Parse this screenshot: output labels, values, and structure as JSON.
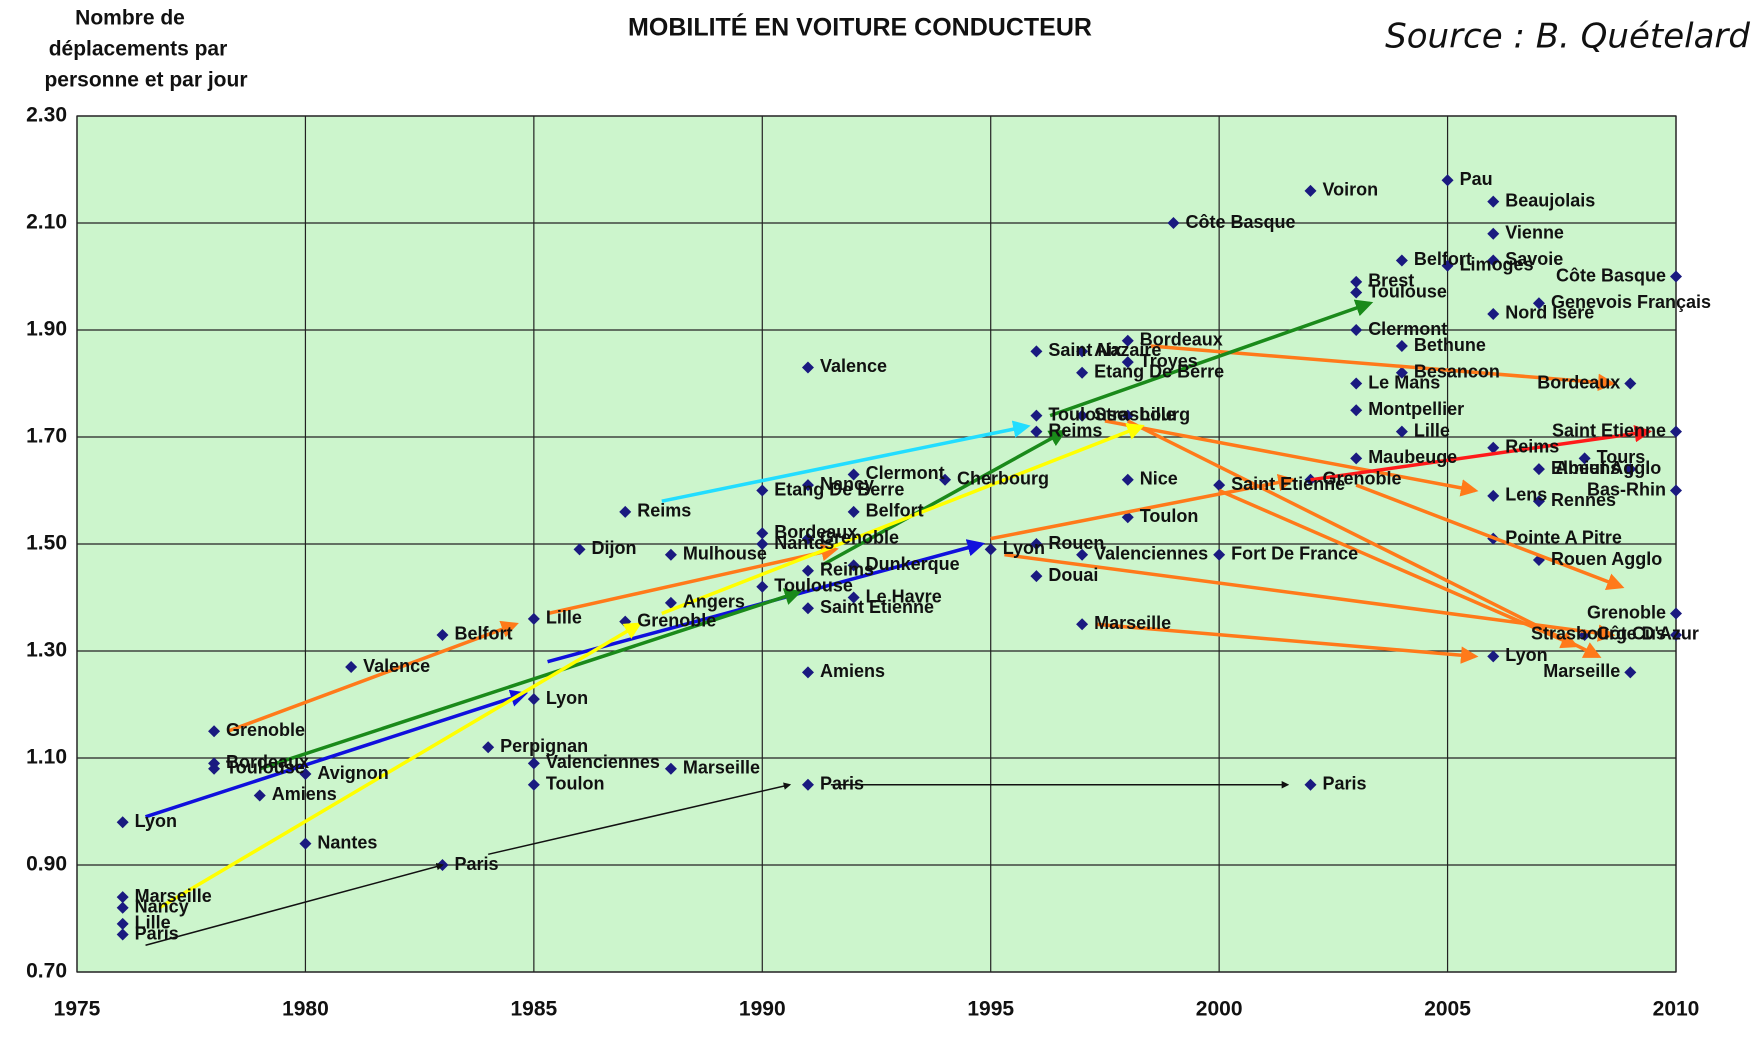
{
  "chart_data": {
    "type": "scatter",
    "title": "MOBILITÉ EN VOITURE CONDUCTEUR",
    "source": "Source : B. Quételard",
    "ylabel": [
      "Nombre de",
      "déplacements par",
      "personne et par jour"
    ],
    "xlim": [
      1975,
      2010
    ],
    "ylim": [
      0.7,
      2.3
    ],
    "xticks": [
      1975,
      1980,
      1985,
      1990,
      1995,
      2000,
      2005,
      2010
    ],
    "yticks": [
      {
        "value": 0.7,
        "label": "0.70"
      },
      {
        "value": 0.9,
        "label": "0.90"
      },
      {
        "value": 1.1,
        "label": "1.10"
      },
      {
        "value": 1.3,
        "label": "1.30"
      },
      {
        "value": 1.5,
        "label": "1.50"
      },
      {
        "value": 1.7,
        "label": "1.70"
      },
      {
        "value": 1.9,
        "label": "1.90"
      },
      {
        "value": 2.1,
        "label": "2.10"
      },
      {
        "value": 2.3,
        "label": "2.30"
      }
    ],
    "grid": true,
    "color": "#1a1a80",
    "background": "#ccf5cc",
    "points": [
      {
        "x": 1976,
        "y": 0.84,
        "label": "Marseille"
      },
      {
        "x": 1976,
        "y": 0.82,
        "label": "Nancy"
      },
      {
        "x": 1976,
        "y": 0.79,
        "label": "Lille"
      },
      {
        "x": 1976,
        "y": 0.77,
        "label": "Paris"
      },
      {
        "x": 1976,
        "y": 0.98,
        "label": "Lyon"
      },
      {
        "x": 1978,
        "y": 1.15,
        "label": "Grenoble"
      },
      {
        "x": 1978,
        "y": 1.09,
        "label": "Bordeaux"
      },
      {
        "x": 1978,
        "y": 1.08,
        "label": "Toulouse"
      },
      {
        "x": 1979,
        "y": 1.03,
        "label": "Amiens"
      },
      {
        "x": 1980,
        "y": 1.07,
        "label": "Avignon"
      },
      {
        "x": 1980,
        "y": 0.94,
        "label": "Nantes"
      },
      {
        "x": 1981,
        "y": 1.27,
        "label": "Valence"
      },
      {
        "x": 1983,
        "y": 1.33,
        "label": "Belfort"
      },
      {
        "x": 1983,
        "y": 0.9,
        "label": "Paris"
      },
      {
        "x": 1984,
        "y": 1.12,
        "label": "Perpignan"
      },
      {
        "x": 1985,
        "y": 1.36,
        "label": "Lille"
      },
      {
        "x": 1987,
        "y": 1.355,
        "label": "Grenoble"
      },
      {
        "x": 1985,
        "y": 1.21,
        "label": "Lyon"
      },
      {
        "x": 1985,
        "y": 1.09,
        "label": "Valenciennes"
      },
      {
        "x": 1985,
        "y": 1.05,
        "label": "Toulon"
      },
      {
        "x": 1988,
        "y": 1.08,
        "label": "Marseille"
      },
      {
        "x": 1988,
        "y": 1.48,
        "label": "Mulhouse"
      },
      {
        "x": 1986,
        "y": 1.49,
        "label": "Dijon"
      },
      {
        "x": 1987,
        "y": 1.56,
        "label": "Reims"
      },
      {
        "x": 1990,
        "y": 1.6,
        "label": "Etang De Berre"
      },
      {
        "x": 1988,
        "y": 1.39,
        "label": "Angers"
      },
      {
        "x": 1992,
        "y": 1.63,
        "label": "Clermont"
      },
      {
        "x": 1991,
        "y": 1.61,
        "label": "Nancy"
      },
      {
        "x": 1991,
        "y": 1.83,
        "label": "Valence"
      },
      {
        "x": 1992,
        "y": 1.56,
        "label": "Belfort"
      },
      {
        "x": 1990,
        "y": 1.52,
        "label": "Bordeaux"
      },
      {
        "x": 1990,
        "y": 1.5,
        "label": "Nantes"
      },
      {
        "x": 1991,
        "y": 1.51,
        "label": "Grenoble"
      },
      {
        "x": 1991,
        "y": 1.45,
        "label": "Reims"
      },
      {
        "x": 1992,
        "y": 1.46,
        "label": "Dunkerque"
      },
      {
        "x": 1990,
        "y": 1.42,
        "label": "Toulouse"
      },
      {
        "x": 1992,
        "y": 1.4,
        "label": "Le Havre"
      },
      {
        "x": 1991,
        "y": 1.38,
        "label": "Saint Etienne"
      },
      {
        "x": 1991,
        "y": 1.26,
        "label": "Amiens"
      },
      {
        "x": 1991,
        "y": 1.05,
        "label": "Paris"
      },
      {
        "x": 1994,
        "y": 1.62,
        "label": "Cherbourg"
      },
      {
        "x": 1995,
        "y": 1.49,
        "label": "Lyon"
      },
      {
        "x": 1996,
        "y": 1.86,
        "label": "Saint Nazaire"
      },
      {
        "x": 1996,
        "y": 1.74,
        "label": "Toulouse"
      },
      {
        "x": 1996,
        "y": 1.71,
        "label": "Reims"
      },
      {
        "x": 1996,
        "y": 1.5,
        "label": "Rouen"
      },
      {
        "x": 1996,
        "y": 1.44,
        "label": "Douai"
      },
      {
        "x": 1997,
        "y": 1.86,
        "label": "Aix"
      },
      {
        "x": 1997,
        "y": 1.82,
        "label": "Etang De Berre"
      },
      {
        "x": 1997,
        "y": 1.74,
        "label": "Strasbourg"
      },
      {
        "x": 1997,
        "y": 1.48,
        "label": "Valenciennes"
      },
      {
        "x": 1997,
        "y": 1.35,
        "label": "Marseille"
      },
      {
        "x": 1998,
        "y": 1.88,
        "label": "Bordeaux"
      },
      {
        "x": 1998,
        "y": 1.84,
        "label": "Troyes"
      },
      {
        "x": 1998,
        "y": 1.74,
        "label": "Lille"
      },
      {
        "x": 1998,
        "y": 1.62,
        "label": "Nice"
      },
      {
        "x": 1998,
        "y": 1.55,
        "label": "Toulon"
      },
      {
        "x": 1999,
        "y": 2.1,
        "label": "Côte Basque"
      },
      {
        "x": 2000,
        "y": 1.48,
        "label": "Fort De France"
      },
      {
        "x": 2000,
        "y": 1.61,
        "label": "Saint Etienne"
      },
      {
        "x": 2002,
        "y": 2.16,
        "label": "Voiron"
      },
      {
        "x": 2002,
        "y": 1.62,
        "label": "Grenoble"
      },
      {
        "x": 2002,
        "y": 1.05,
        "label": "Paris"
      },
      {
        "x": 2003,
        "y": 1.99,
        "label": "Brest"
      },
      {
        "x": 2003,
        "y": 1.97,
        "label": "Toulouse"
      },
      {
        "x": 2003,
        "y": 1.9,
        "label": "Clermont"
      },
      {
        "x": 2003,
        "y": 1.8,
        "label": "Le Mans"
      },
      {
        "x": 2003,
        "y": 1.75,
        "label": "Montpellier"
      },
      {
        "x": 2003,
        "y": 1.66,
        "label": "Maubeuge"
      },
      {
        "x": 2004,
        "y": 2.03,
        "label": "Belfort"
      },
      {
        "x": 2004,
        "y": 1.87,
        "label": "Bethune"
      },
      {
        "x": 2004,
        "y": 1.82,
        "label": "Besancon"
      },
      {
        "x": 2004,
        "y": 1.71,
        "label": "Lille"
      },
      {
        "x": 2005,
        "y": 2.18,
        "label": "Pau"
      },
      {
        "x": 2005,
        "y": 2.02,
        "label": "Limoges"
      },
      {
        "x": 2006,
        "y": 2.14,
        "label": "Beaujolais"
      },
      {
        "x": 2006,
        "y": 2.08,
        "label": "Vienne"
      },
      {
        "x": 2006,
        "y": 2.03,
        "label": "Savoie"
      },
      {
        "x": 2006,
        "y": 1.93,
        "label": "Nord Isere"
      },
      {
        "x": 2006,
        "y": 1.68,
        "label": "Reims"
      },
      {
        "x": 2006,
        "y": 1.59,
        "label": "Lens"
      },
      {
        "x": 2006,
        "y": 1.51,
        "label": "Pointe A Pitre"
      },
      {
        "x": 2006,
        "y": 1.29,
        "label": "Lyon"
      },
      {
        "x": 2007,
        "y": 1.95,
        "label": "Genevois Français"
      },
      {
        "x": 2007,
        "y": 1.64,
        "label": "Elbeuf Agglo"
      },
      {
        "x": 2007,
        "y": 1.58,
        "label": "Rennes"
      },
      {
        "x": 2007,
        "y": 1.47,
        "label": "Rouen Agglo"
      },
      {
        "x": 2008,
        "y": 1.66,
        "label": "Tours"
      },
      {
        "x": 2008,
        "y": 1.33,
        "label": "Côte D'Azur"
      },
      {
        "x": 2009,
        "y": 1.8,
        "label": "Bordeaux"
      },
      {
        "x": 2009,
        "y": 1.26,
        "label": "Marseille"
      },
      {
        "x": 2009,
        "y": 1.64,
        "label": "Amiens"
      },
      {
        "x": 2010,
        "y": 2.0,
        "label": "Côte Basque"
      },
      {
        "x": 2010,
        "y": 1.71,
        "label": "Saint Etienne"
      },
      {
        "x": 2010,
        "y": 1.6,
        "label": "Bas-Rhin"
      },
      {
        "x": 2010,
        "y": 1.37,
        "label": "Grenoble"
      },
      {
        "x": 2010,
        "y": 1.33,
        "label": "Strasbourg Cus"
      }
    ],
    "arrows": [
      {
        "color": "#111111",
        "x": [
          1976.5,
          1983
        ],
        "y": [
          0.75,
          0.9
        ]
      },
      {
        "color": "#111111",
        "x": [
          1984,
          1990.6
        ],
        "y": [
          0.92,
          1.05
        ]
      },
      {
        "color": "#111111",
        "x": [
          1991.5,
          2001.5
        ],
        "y": [
          1.05,
          1.05
        ]
      },
      {
        "color": "#ff7a1a",
        "x": [
          1978.3,
          1984.6
        ],
        "y": [
          1.15,
          1.35
        ]
      },
      {
        "color": "#ff7a1a",
        "x": [
          1985.3,
          1991.6
        ],
        "y": [
          1.37,
          1.49
        ]
      },
      {
        "color": "#ff7a1a",
        "x": [
          1995,
          2001.6
        ],
        "y": [
          1.51,
          1.62
        ]
      },
      {
        "color": "#ff7a1a",
        "x": [
          1997.5,
          2005.6
        ],
        "y": [
          1.73,
          1.6
        ]
      },
      {
        "color": "#ff7a1a",
        "x": [
          1997.3,
          2005.6
        ],
        "y": [
          1.35,
          1.29
        ]
      },
      {
        "color": "#ff7a1a",
        "x": [
          1995.3,
          2008.6
        ],
        "y": [
          1.48,
          1.33
        ]
      },
      {
        "color": "#ff7a1a",
        "x": [
          1998.5,
          2008.6
        ],
        "y": [
          1.87,
          1.8
        ]
      },
      {
        "color": "#ff7a1a",
        "x": [
          1998,
          2008.3
        ],
        "y": [
          1.73,
          1.29
        ]
      },
      {
        "color": "#ff7a1a",
        "x": [
          2003,
          2008.8
        ],
        "y": [
          1.61,
          1.42
        ]
      },
      {
        "color": "#ff7a1a",
        "x": [
          2000,
          2007.8
        ],
        "y": [
          1.6,
          1.31
        ]
      },
      {
        "color": "#1010dd",
        "x": [
          1976.5,
          1984.8
        ],
        "y": [
          0.99,
          1.22
        ]
      },
      {
        "color": "#1010dd",
        "x": [
          1985.3,
          1994.8
        ],
        "y": [
          1.28,
          1.5
        ]
      },
      {
        "color": "#1a8a1a",
        "x": [
          1979,
          1990.8
        ],
        "y": [
          1.08,
          1.41
        ]
      },
      {
        "color": "#1a8a1a",
        "x": [
          1991.3,
          1996.6
        ],
        "y": [
          1.46,
          1.71
        ]
      },
      {
        "color": "#1a8a1a",
        "x": [
          1996.3,
          2003.3
        ],
        "y": [
          1.74,
          1.95
        ]
      },
      {
        "color": "#ffff00",
        "x": [
          1976.8,
          1987.3
        ],
        "y": [
          0.82,
          1.35
        ]
      },
      {
        "color": "#ffff00",
        "x": [
          1987.8,
          1998.3
        ],
        "y": [
          1.37,
          1.72
        ]
      },
      {
        "color": "#22ddff",
        "x": [
          1987.8,
          1995.8
        ],
        "y": [
          1.58,
          1.72
        ]
      },
      {
        "color": "#ff1a1a",
        "x": [
          2002,
          2009.4
        ],
        "y": [
          1.62,
          1.71
        ]
      }
    ]
  }
}
